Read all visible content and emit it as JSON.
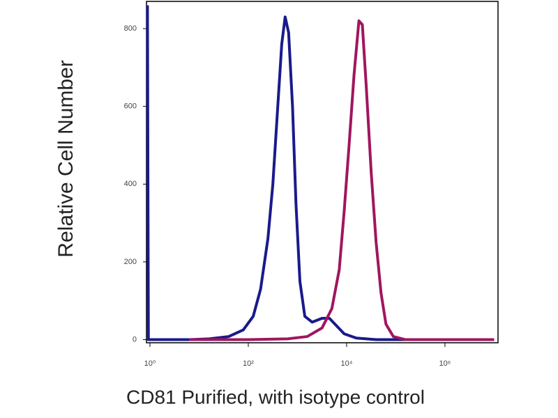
{
  "chart_data": {
    "type": "line",
    "xlabel": "CD81 Purified, with isotype control",
    "ylabel": "Relative Cell Number",
    "xscale": "log",
    "xlim": [
      0.85,
      12000000
    ],
    "ylim": [
      -8,
      870
    ],
    "xticks": [
      {
        "value": 1,
        "label": "10⁰"
      },
      {
        "value": 100,
        "label": "10²"
      },
      {
        "value": 10000,
        "label": "10⁴"
      },
      {
        "value": 1000000,
        "label": "10⁶"
      }
    ],
    "yticks": [
      0,
      200,
      400,
      600,
      800
    ],
    "series": [
      {
        "color": "#1a1a8c",
        "x": [
          0.89,
          0.93,
          6.3,
          16,
          40,
          79,
          126,
          178,
          251,
          316,
          398,
          479,
          562,
          661,
          794,
          933,
          1122,
          1413,
          1995,
          3162,
          4467,
          6310,
          8913,
          15849,
          39811,
          10000000
        ],
        "values": [
          860,
          0,
          0,
          2,
          8,
          25,
          60,
          130,
          260,
          400,
          600,
          760,
          830,
          790,
          600,
          350,
          150,
          60,
          45,
          55,
          55,
          35,
          15,
          4,
          0,
          0
        ]
      },
      {
        "color": "#a0165e",
        "x": [
          6.3,
          100,
          631,
          1585,
          3162,
          5012,
          7079,
          8913,
          11220,
          14125,
          17783,
          20893,
          25119,
          31623,
          39811,
          50119,
          63096,
          89125,
          158489,
          10000000
        ],
        "values": [
          0,
          0,
          2,
          8,
          30,
          80,
          180,
          330,
          500,
          680,
          820,
          810,
          650,
          430,
          250,
          120,
          40,
          8,
          0,
          0
        ]
      }
    ]
  }
}
